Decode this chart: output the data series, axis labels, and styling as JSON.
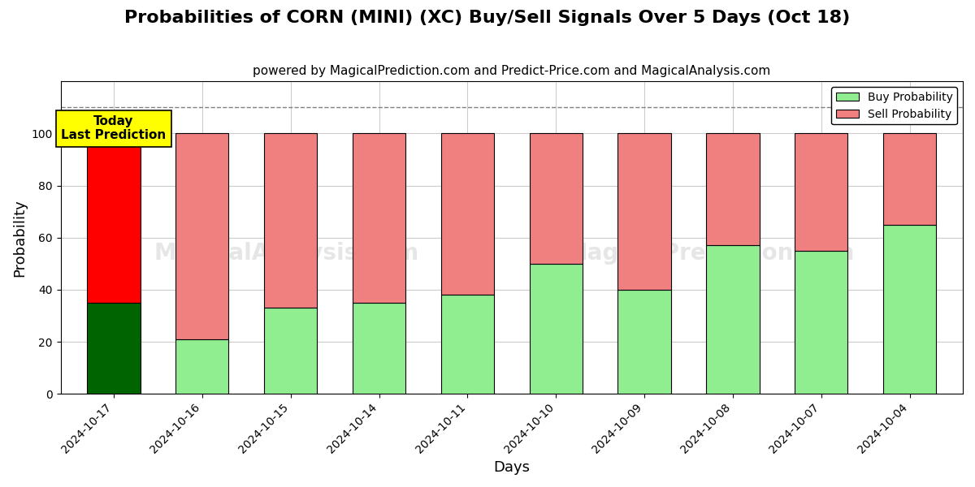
{
  "title": "Probabilities of CORN (MINI) (XC) Buy/Sell Signals Over 5 Days (Oct 18)",
  "subtitle": "powered by MagicalPrediction.com and Predict-Price.com and MagicalAnalysis.com",
  "xlabel": "Days",
  "ylabel": "Probability",
  "dates": [
    "2024-10-17",
    "2024-10-16",
    "2024-10-15",
    "2024-10-14",
    "2024-10-11",
    "2024-10-10",
    "2024-10-09",
    "2024-10-08",
    "2024-10-07",
    "2024-10-04"
  ],
  "buy_values": [
    35,
    21,
    33,
    35,
    38,
    50,
    40,
    57,
    55,
    65
  ],
  "sell_values": [
    65,
    79,
    67,
    65,
    62,
    50,
    60,
    43,
    45,
    35
  ],
  "today_bar_buy_color": "#006400",
  "today_bar_sell_color": "#FF0000",
  "other_bar_buy_color": "#90EE90",
  "other_bar_sell_color": "#F08080",
  "bar_edge_color": "#000000",
  "today_label": "Today\nLast Prediction",
  "today_label_bg": "#FFFF00",
  "dashed_line_y": 110,
  "ylim": [
    0,
    120
  ],
  "yticks": [
    0,
    20,
    40,
    60,
    80,
    100
  ],
  "grid_color": "#cccccc",
  "legend_buy_color": "#90EE90",
  "legend_sell_color": "#F08080",
  "title_fontsize": 16,
  "subtitle_fontsize": 11,
  "bar_width": 0.6
}
